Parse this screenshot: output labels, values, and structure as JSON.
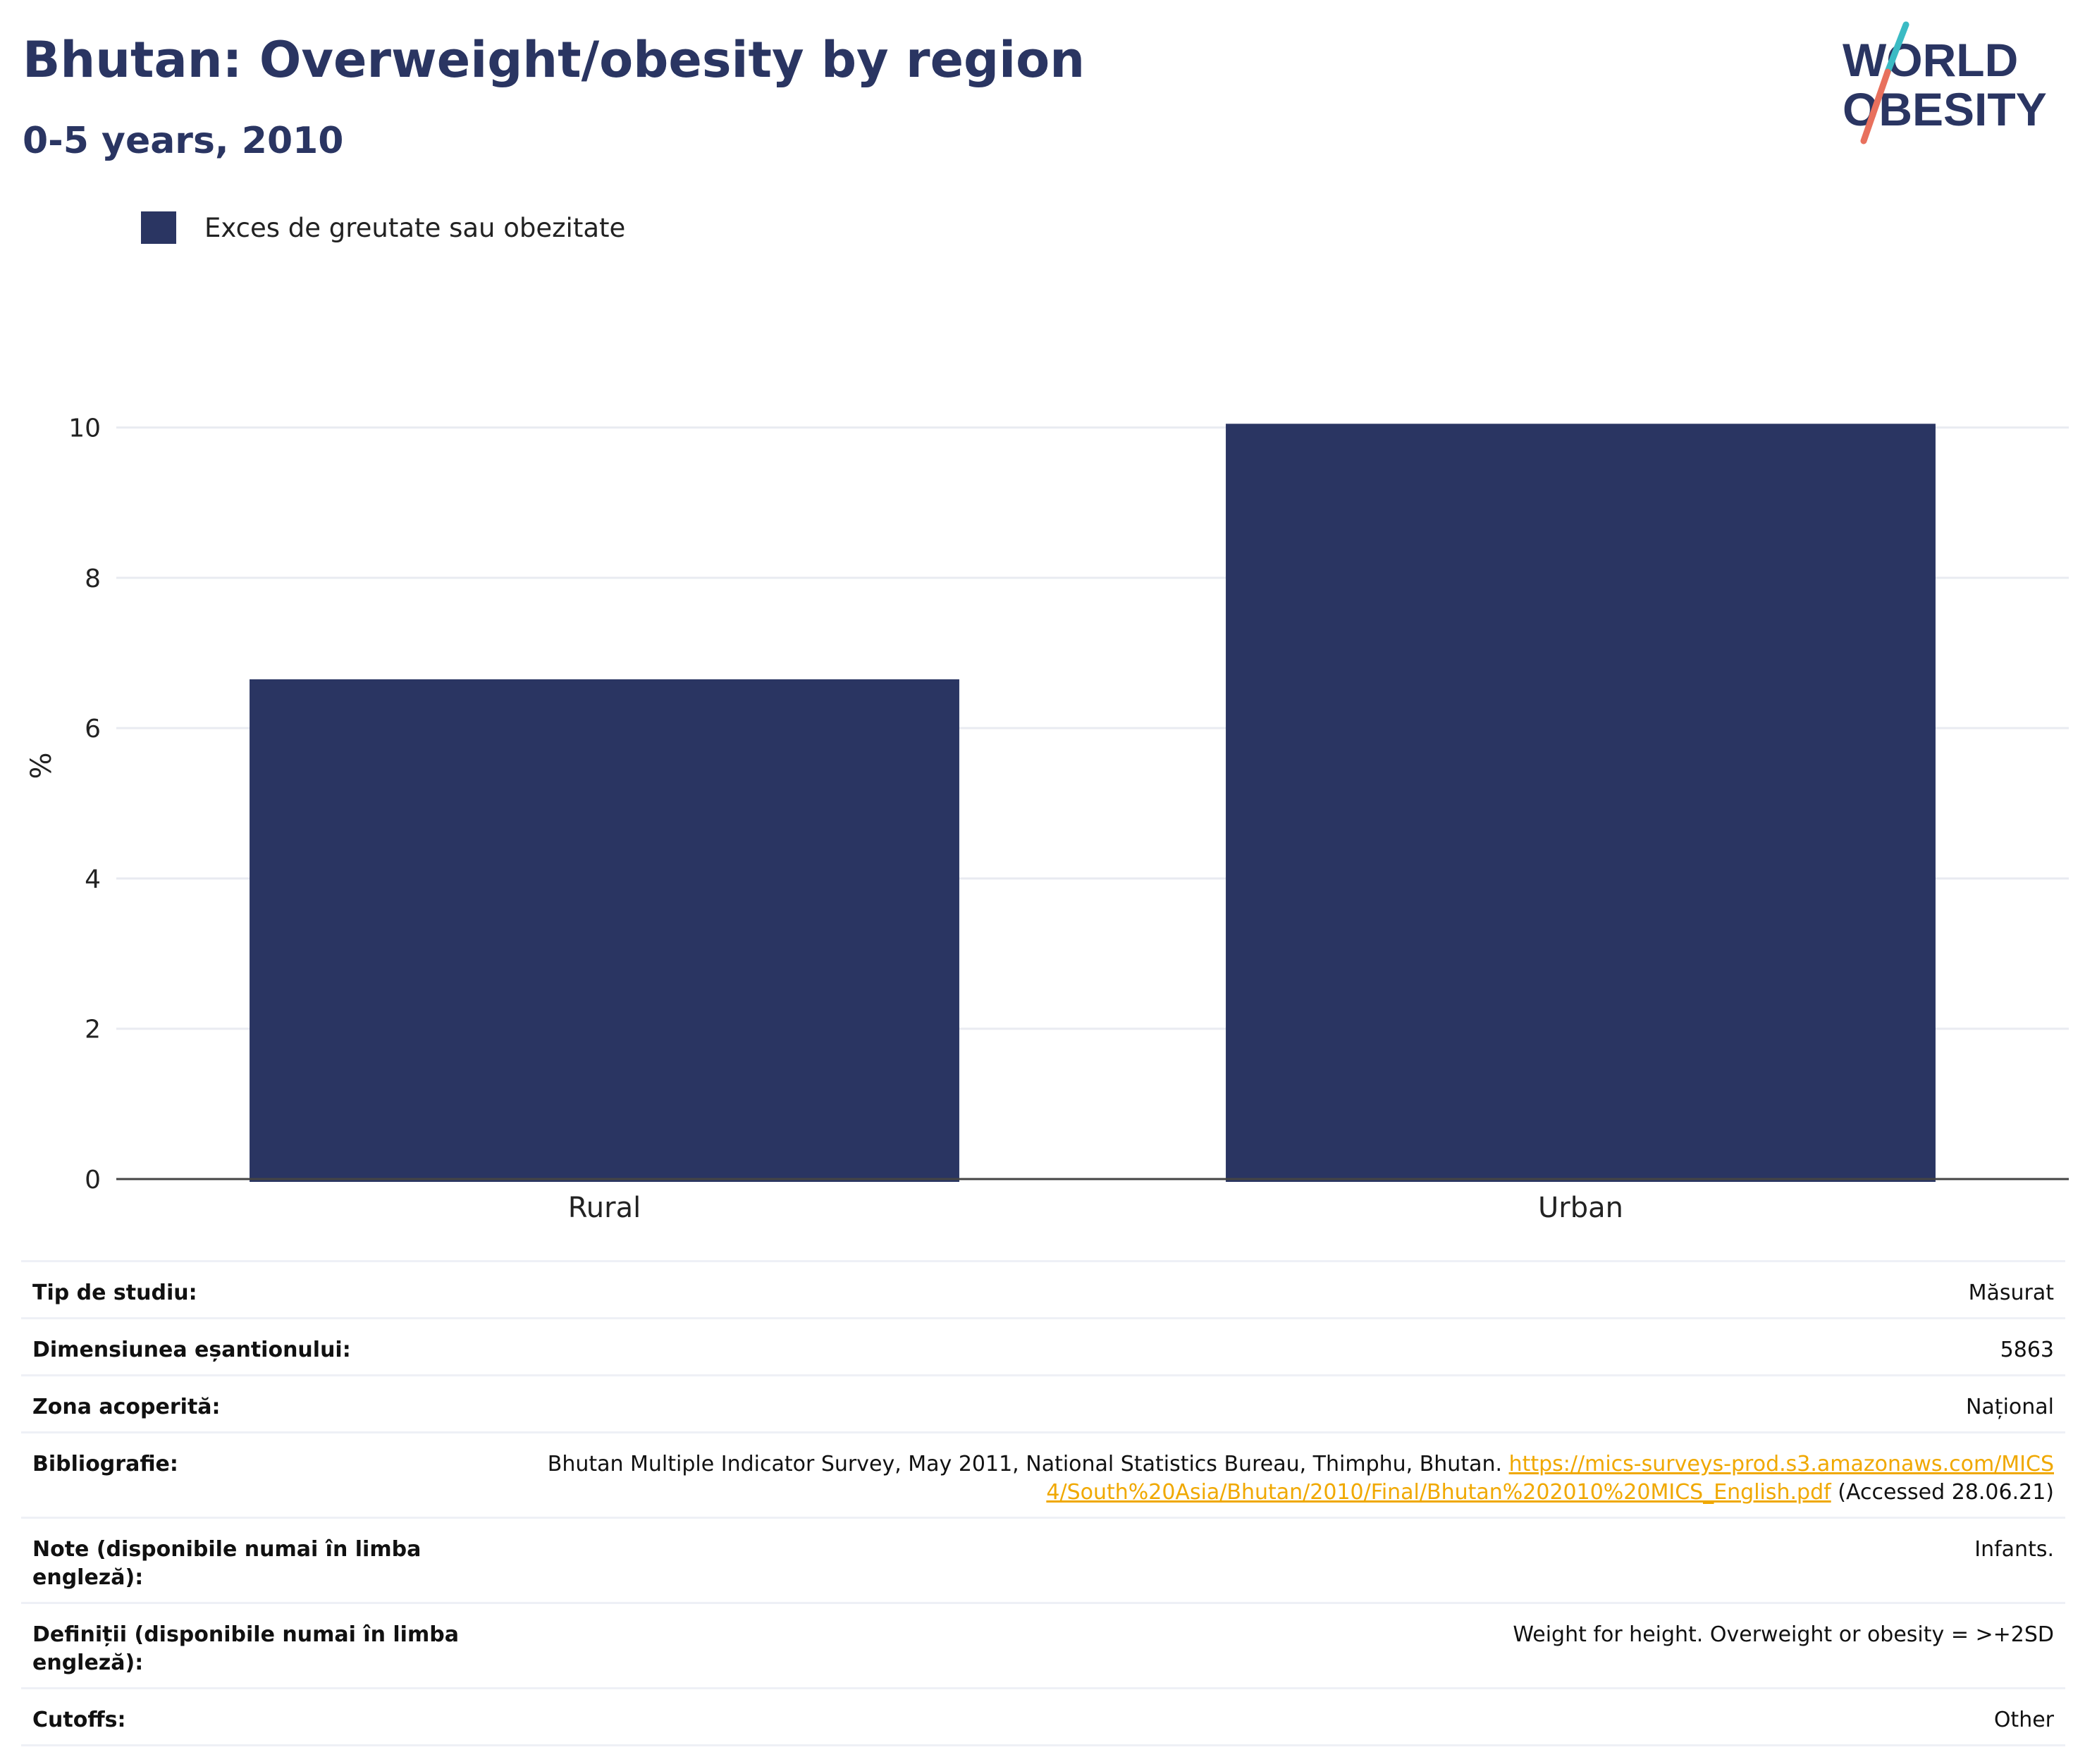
{
  "header": {
    "title": "Bhutan: Overweight/obesity by region",
    "subtitle": "0-5 years, 2010"
  },
  "logo": {
    "line1": "WORLD",
    "line2": "OBESITY",
    "colors": {
      "text": "#2a3562",
      "slash_top": "#3bbbc4",
      "slash_bottom": "#e8705d"
    }
  },
  "chart_data": {
    "type": "bar",
    "categories": [
      "Rural",
      "Urban"
    ],
    "series": [
      {
        "name": "Exces de greutate sau obezitate",
        "values": [
          6.65,
          10.05
        ],
        "color": "#2a3562"
      }
    ],
    "xlabel": "",
    "ylabel": "%",
    "ylim": [
      0,
      11
    ],
    "yticks": [
      0,
      2,
      4,
      6,
      8,
      10
    ],
    "grid": true,
    "legend_position": "top-left"
  },
  "info": [
    {
      "key": "Tip de studiu:",
      "value": "Măsurat"
    },
    {
      "key": "Dimensiunea eșantionului:",
      "value": "5863"
    },
    {
      "key": "Zona acoperită:",
      "value": "Național"
    },
    {
      "key": "Bibliografie:",
      "value_prefix": "Bhutan Multiple Indicator Survey, May 2011, National Statistics Bureau, Thimphu, Bhutan.",
      "link": "https://mics-surveys-prod.s3.amazonaws.com/MICS4/South%20Asia/Bhutan/2010/Final/Bhutan%202010%20MICS_English.pdf",
      "value_suffix": "(Accessed 28.06.21)"
    },
    {
      "key": "Note (disponibile numai în limba engleză):",
      "value": "Infants."
    },
    {
      "key": "Definiții (disponibile numai în limba engleză):",
      "value": "Weight for height. Overweight or obesity = >+2SD"
    },
    {
      "key": "Cutoffs:",
      "value": "Other"
    }
  ]
}
